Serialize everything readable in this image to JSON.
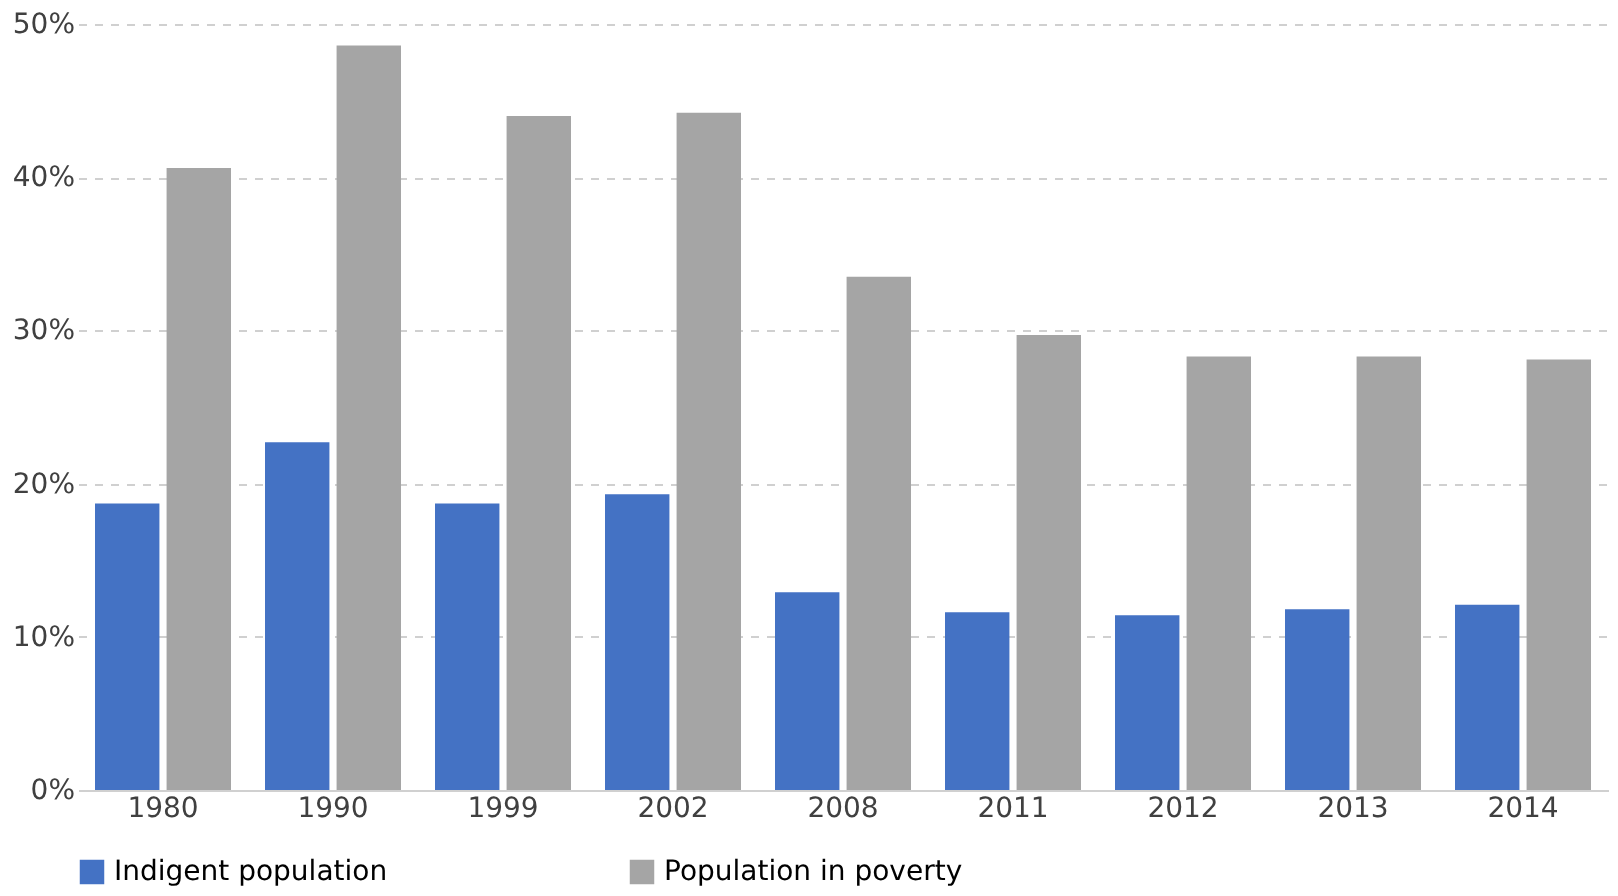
{
  "chart_data": {
    "type": "bar",
    "categories": [
      "1980",
      "1990",
      "1999",
      "2002",
      "2008",
      "2011",
      "2012",
      "2013",
      "2014"
    ],
    "series": [
      {
        "name": "Indigent population",
        "color": "#4472c4",
        "values": [
          18.7,
          22.7,
          18.7,
          19.3,
          12.9,
          11.6,
          11.4,
          11.8,
          12.1
        ]
      },
      {
        "name": "Population in poverty",
        "color": "#a5a5a5",
        "values": [
          40.6,
          48.6,
          44.0,
          44.2,
          33.5,
          29.7,
          28.3,
          28.3,
          28.1
        ]
      }
    ],
    "ylim": [
      0,
      50
    ],
    "yticks": [
      {
        "value": 0,
        "label": "0%"
      },
      {
        "value": 10,
        "label": "10%"
      },
      {
        "value": 20,
        "label": "20%"
      },
      {
        "value": 30,
        "label": "30%"
      },
      {
        "value": 40,
        "label": "40%"
      },
      {
        "value": 50,
        "label": "50%"
      }
    ],
    "grid": "y",
    "legend": "bottom"
  }
}
